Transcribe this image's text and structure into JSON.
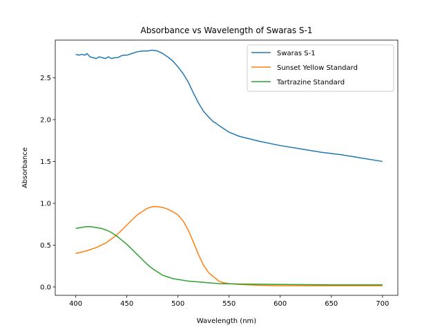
{
  "chart_data": {
    "type": "line",
    "title": "Absorbance vs Wavelength of Swaras S-1",
    "xlabel": "Wavelength (nm)",
    "ylabel": "Absorbance",
    "xlim": [
      380,
      715
    ],
    "ylim": [
      -0.1,
      2.95
    ],
    "xticks": [
      400,
      450,
      500,
      550,
      600,
      650,
      700
    ],
    "yticks": [
      0.0,
      0.5,
      1.0,
      1.5,
      2.0,
      2.5
    ],
    "xtick_labels": [
      "400",
      "450",
      "500",
      "550",
      "600",
      "650",
      "700"
    ],
    "ytick_labels": [
      "0.0",
      "0.5",
      "1.0",
      "1.5",
      "2.0",
      "2.5"
    ],
    "grid": false,
    "legend_position": "top-right",
    "series": [
      {
        "name": "Swaras S-1",
        "color": "#1f77b4",
        "x": [
          400,
          403,
          406,
          409,
          411,
          414,
          417,
          420,
          423,
          426,
          429,
          432,
          435,
          438,
          441,
          444,
          447,
          450,
          455,
          460,
          465,
          470,
          475,
          480,
          485,
          490,
          495,
          500,
          505,
          510,
          515,
          520,
          525,
          530,
          535,
          537,
          540,
          545,
          550,
          560,
          570,
          580,
          600,
          620,
          640,
          660,
          680,
          700
        ],
        "y": [
          2.78,
          2.77,
          2.78,
          2.77,
          2.79,
          2.75,
          2.74,
          2.73,
          2.75,
          2.74,
          2.73,
          2.75,
          2.73,
          2.74,
          2.74,
          2.76,
          2.77,
          2.77,
          2.79,
          2.81,
          2.82,
          2.82,
          2.83,
          2.82,
          2.79,
          2.75,
          2.7,
          2.63,
          2.55,
          2.45,
          2.32,
          2.2,
          2.1,
          2.03,
          1.97,
          1.96,
          1.93,
          1.89,
          1.85,
          1.8,
          1.77,
          1.74,
          1.69,
          1.65,
          1.61,
          1.58,
          1.54,
          1.5
        ]
      },
      {
        "name": "Sunset Yellow Standard",
        "color": "#ff7f0e",
        "x": [
          400,
          410,
          420,
          430,
          440,
          450,
          460,
          470,
          475,
          480,
          485,
          490,
          495,
          500,
          505,
          510,
          515,
          520,
          525,
          530,
          535,
          538,
          540,
          545,
          550,
          560,
          580,
          600,
          650,
          700
        ],
        "y": [
          0.4,
          0.43,
          0.47,
          0.53,
          0.62,
          0.74,
          0.86,
          0.94,
          0.96,
          0.96,
          0.95,
          0.93,
          0.9,
          0.86,
          0.79,
          0.68,
          0.54,
          0.39,
          0.26,
          0.17,
          0.12,
          0.09,
          0.07,
          0.05,
          0.04,
          0.03,
          0.02,
          0.015,
          0.015,
          0.015
        ]
      },
      {
        "name": "Tartrazine Standard",
        "color": "#2ca02c",
        "x": [
          400,
          405,
          410,
          415,
          420,
          425,
          430,
          435,
          440,
          445,
          450,
          455,
          460,
          465,
          470,
          475,
          480,
          485,
          490,
          495,
          500,
          510,
          520,
          530,
          540,
          560,
          600,
          650,
          700
        ],
        "y": [
          0.7,
          0.71,
          0.72,
          0.72,
          0.71,
          0.7,
          0.68,
          0.65,
          0.61,
          0.56,
          0.51,
          0.45,
          0.39,
          0.33,
          0.27,
          0.22,
          0.18,
          0.14,
          0.12,
          0.1,
          0.09,
          0.07,
          0.06,
          0.05,
          0.04,
          0.035,
          0.03,
          0.025,
          0.025
        ]
      }
    ]
  }
}
